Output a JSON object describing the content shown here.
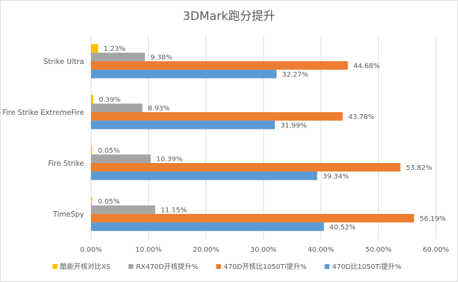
{
  "chart_data": {
    "type": "bar",
    "orientation": "horizontal",
    "title": "3DMark跑分提升",
    "categories": [
      "Strike Ultra",
      "Fire Strike ExtremeFire",
      "Fire Strike",
      "TimeSpy"
    ],
    "series": [
      {
        "name": "酷能开核对比XS",
        "color": "#ffc000",
        "values": [
          1.23,
          0.39,
          0.05,
          0.05
        ]
      },
      {
        "name": "RX470D开核提升%",
        "color": "#a5a5a5",
        "values": [
          9.38,
          8.93,
          10.39,
          11.15
        ]
      },
      {
        "name": "470D开核比1050Ti提升%",
        "color": "#ed7d31",
        "values": [
          44.68,
          43.78,
          53.82,
          56.19
        ]
      },
      {
        "name": "470D比1050Ti提升%",
        "color": "#5b9bd5",
        "values": [
          32.27,
          31.99,
          39.34,
          40.52
        ]
      }
    ],
    "xlim": [
      0,
      60
    ],
    "xticks": [
      0,
      10,
      20,
      30,
      40,
      50,
      60
    ],
    "tick_labels": [
      "0.00%",
      "10.00%",
      "20.00%",
      "30.00%",
      "40.00%",
      "50.00%",
      "60.00%"
    ],
    "data_labels": "value with %",
    "grid": "vertical",
    "legend": "bottom"
  }
}
